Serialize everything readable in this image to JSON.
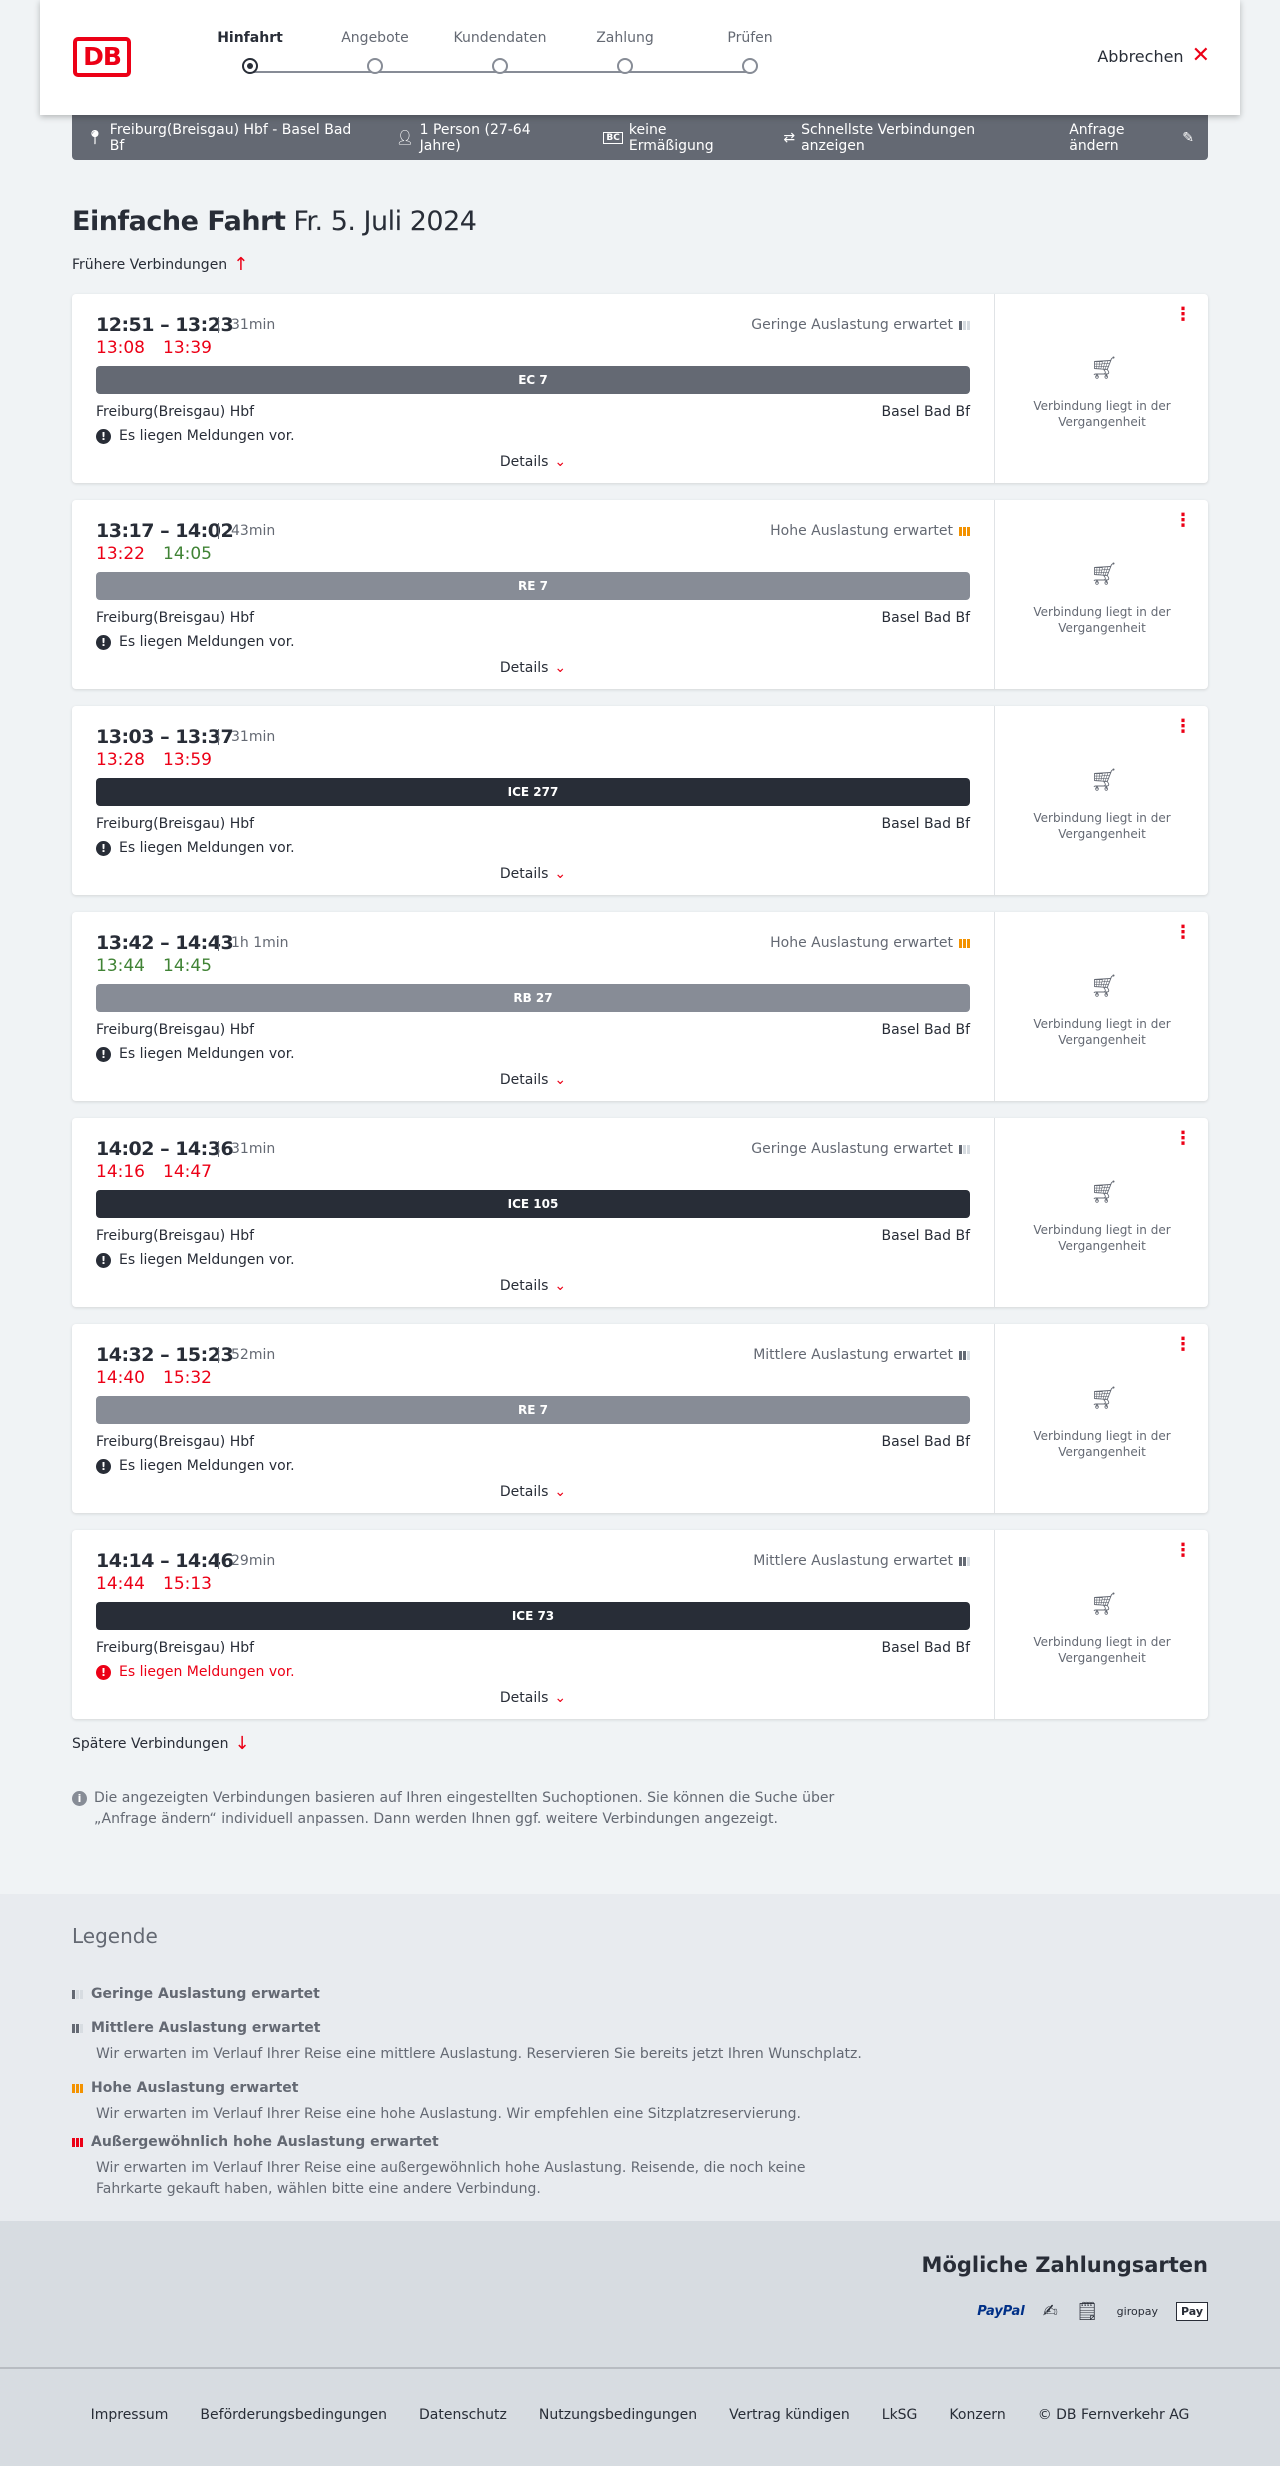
{
  "header": {
    "logo": "DB",
    "steps": [
      "Hinfahrt",
      "Angebote",
      "Kundendaten",
      "Zahlung",
      "Prüfen"
    ],
    "active_step": 0,
    "cancel": "Abbrechen"
  },
  "summary": {
    "route": "Freiburg(Breisgau) Hbf - Basel Bad Bf",
    "persons": "1 Person (27-64 Jahre)",
    "discount": "keine Ermäßigung",
    "fastest": "Schnellste Verbindungen anzeigen",
    "edit": "Anfrage ändern"
  },
  "title": {
    "main": "Einfache Fahrt",
    "date": "Fr. 5. Juli 2024"
  },
  "earlier": "Frühere Verbindungen",
  "later": "Spätere Verbindungen",
  "colors": {
    "red": "#ec0016",
    "green": "#408335",
    "dark": "#282d37",
    "mid": "#646973",
    "light": "#878c96",
    "orange": "#f39200"
  },
  "connections": [
    {
      "times": "12:51 – 13:23",
      "duration": "31min",
      "load": "Geringe Auslastung erwartet",
      "load_level": 1,
      "rt_dep": "13:08",
      "rt_dep_late": true,
      "rt_arr": "13:39",
      "rt_arr_late": true,
      "train": "EC 7",
      "train_color": "#646973",
      "from": "Freiburg(Breisgau) Hbf",
      "to": "Basel Bad Bf",
      "message": "Es liegen Meldungen vor.",
      "message_red": false,
      "details": "Details",
      "status": "Verbindung liegt in der Vergangenheit"
    },
    {
      "times": "13:17 – 14:02",
      "duration": "43min",
      "load": "Hohe Auslastung erwartet",
      "load_level": 3,
      "rt_dep": "13:22",
      "rt_dep_late": true,
      "rt_arr": "14:05",
      "rt_arr_late": false,
      "train": "RE 7",
      "train_color": "#878c96",
      "from": "Freiburg(Breisgau) Hbf",
      "to": "Basel Bad Bf",
      "message": "Es liegen Meldungen vor.",
      "message_red": false,
      "details": "Details",
      "status": "Verbindung liegt in der Vergangenheit"
    },
    {
      "times": "13:03 – 13:37",
      "duration": "31min",
      "load": "",
      "load_level": 0,
      "rt_dep": "13:28",
      "rt_dep_late": true,
      "rt_arr": "13:59",
      "rt_arr_late": true,
      "train": "ICE 277",
      "train_color": "#282d37",
      "from": "Freiburg(Breisgau) Hbf",
      "to": "Basel Bad Bf",
      "message": "Es liegen Meldungen vor.",
      "message_red": false,
      "details": "Details",
      "status": "Verbindung liegt in der Vergangenheit"
    },
    {
      "times": "13:42 – 14:43",
      "duration": "1h 1min",
      "load": "Hohe Auslastung erwartet",
      "load_level": 3,
      "rt_dep": "13:44",
      "rt_dep_late": false,
      "rt_arr": "14:45",
      "rt_arr_late": false,
      "train": "RB 27",
      "train_color": "#878c96",
      "from": "Freiburg(Breisgau) Hbf",
      "to": "Basel Bad Bf",
      "message": "Es liegen Meldungen vor.",
      "message_red": false,
      "details": "Details",
      "status": "Verbindung liegt in der Vergangenheit"
    },
    {
      "times": "14:02 – 14:36",
      "duration": "31min",
      "load": "Geringe Auslastung erwartet",
      "load_level": 1,
      "rt_dep": "14:16",
      "rt_dep_late": true,
      "rt_arr": "14:47",
      "rt_arr_late": true,
      "train": "ICE 105",
      "train_color": "#282d37",
      "from": "Freiburg(Breisgau) Hbf",
      "to": "Basel Bad Bf",
      "message": "Es liegen Meldungen vor.",
      "message_red": false,
      "details": "Details",
      "status": "Verbindung liegt in der Vergangenheit"
    },
    {
      "times": "14:32 – 15:23",
      "duration": "52min",
      "load": "Mittlere Auslastung erwartet",
      "load_level": 2,
      "rt_dep": "14:40",
      "rt_dep_late": true,
      "rt_arr": "15:32",
      "rt_arr_late": true,
      "train": "RE 7",
      "train_color": "#878c96",
      "from": "Freiburg(Breisgau) Hbf",
      "to": "Basel Bad Bf",
      "message": "Es liegen Meldungen vor.",
      "message_red": false,
      "details": "Details",
      "status": "Verbindung liegt in der Vergangenheit"
    },
    {
      "times": "14:14 – 14:46",
      "duration": "29min",
      "load": "Mittlere Auslastung erwartet",
      "load_level": 2,
      "rt_dep": "14:44",
      "rt_dep_late": true,
      "rt_arr": "15:13",
      "rt_arr_late": true,
      "train": "ICE 73",
      "train_color": "#282d37",
      "from": "Freiburg(Breisgau) Hbf",
      "to": "Basel Bad Bf",
      "message": "Es liegen Meldungen vor.",
      "message_red": true,
      "details": "Details",
      "status": "Verbindung liegt in der Vergangenheit"
    }
  ],
  "info": "Die angezeigten Verbindungen basieren auf Ihren eingestellten Suchoptionen. Sie können die Suche über „Anfrage ändern“ individuell anpassen. Dann werden Ihnen ggf. weitere Verbindungen angezeigt.",
  "legend": {
    "title": "Legende",
    "items": [
      {
        "title": "Geringe Auslastung erwartet",
        "desc": ""
      },
      {
        "title": "Mittlere Auslastung erwartet",
        "desc": "Wir erwarten im Verlauf Ihrer Reise eine mittlere Auslastung. Reservieren Sie bereits jetzt Ihren Wunschplatz."
      },
      {
        "title": "Hohe Auslastung erwartet",
        "desc": "Wir erwarten im Verlauf Ihrer Reise eine hohe Auslastung. Wir empfehlen eine Sitzplatzreservierung."
      },
      {
        "title": "Außergewöhnlich hohe Auslastung erwartet",
        "desc": "Wir erwarten im Verlauf Ihrer Reise eine außergewöhnlich hohe Auslastung. Reisende, die noch keine Fahrkarte gekauft haben, wählen bitte eine andere Verbindung."
      }
    ]
  },
  "payment": {
    "title": "Mögliche Zahlungsarten",
    "methods": [
      "PayPal",
      "Kreditkarte",
      "SEPA",
      "giropay",
      "Apple Pay"
    ],
    "paypal_label": "PayPal",
    "giropay_label": "giropay",
    "applepay_label": "Pay"
  },
  "footer": {
    "links": [
      "Impressum",
      "Beförderungsbedingungen",
      "Datenschutz",
      "Nutzungsbedingungen",
      "Vertrag kündigen",
      "LkSG",
      "Konzern",
      "© DB Fernverkehr AG"
    ]
  }
}
